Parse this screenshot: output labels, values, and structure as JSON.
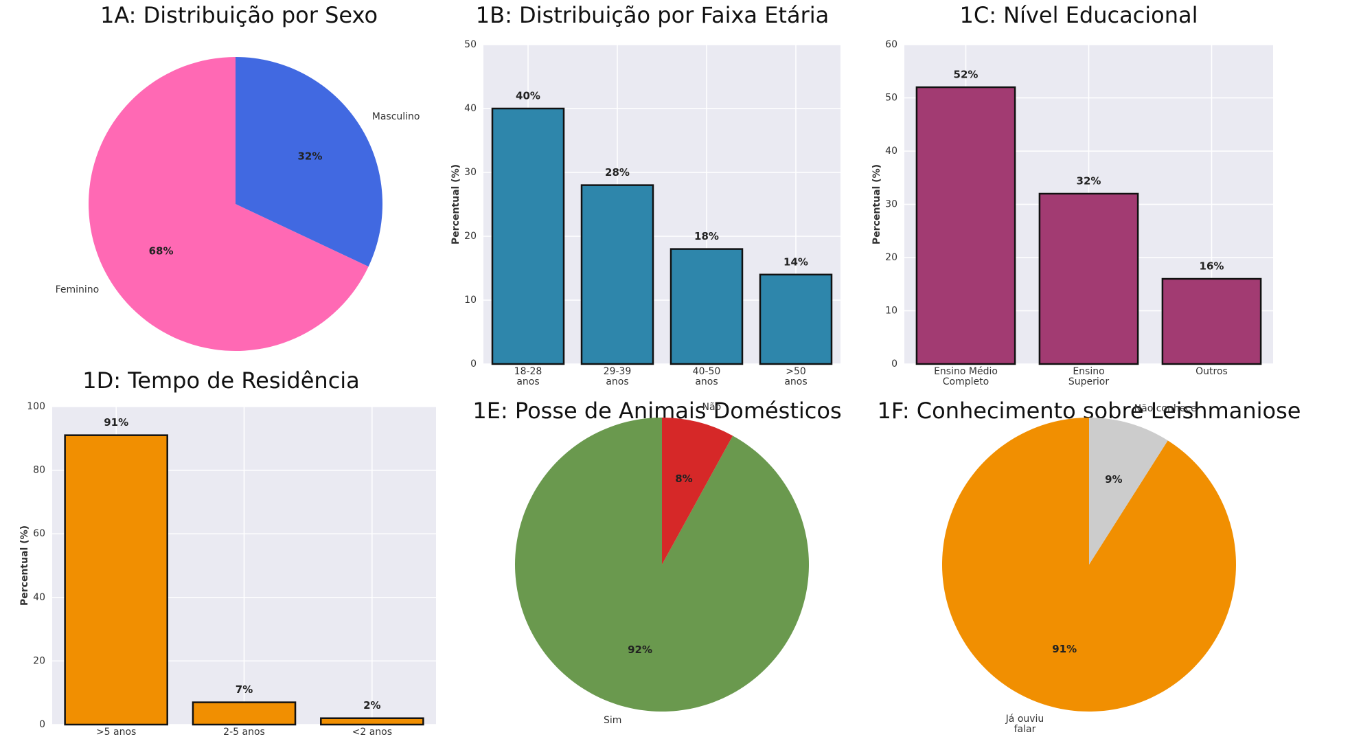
{
  "chart_data": [
    {
      "type": "pie",
      "title": "1A: Distribuição por Sexo",
      "categories": [
        "Feminino",
        "Masculino"
      ],
      "values": [
        68,
        32
      ],
      "value_labels": [
        "68%",
        "32%"
      ],
      "colors": [
        "#ff69b4",
        "#4169e1"
      ]
    },
    {
      "type": "bar",
      "title": "1B: Distribuição por Faixa Etária",
      "ylabel": "Percentual (%)",
      "categories": [
        "18-28\nanos",
        "29-39\nanos",
        "40-50\nanos",
        ">50\nanos"
      ],
      "values": [
        40,
        28,
        18,
        14
      ],
      "value_labels": [
        "40%",
        "28%",
        "18%",
        "14%"
      ],
      "color": "#2e86ab",
      "ylim": [
        0,
        50
      ],
      "yticks": [
        0,
        10,
        20,
        30,
        40,
        50
      ],
      "grid": true
    },
    {
      "type": "bar",
      "title": "1C: Nível Educacional",
      "ylabel": "Percentual (%)",
      "categories": [
        "Ensino Médio\nCompleto",
        "Ensino\nSuperior",
        "Outros"
      ],
      "values": [
        52,
        32,
        16
      ],
      "value_labels": [
        "52%",
        "32%",
        "16%"
      ],
      "color": "#a23b72",
      "ylim": [
        0,
        60
      ],
      "yticks": [
        0,
        10,
        20,
        30,
        40,
        50,
        60
      ],
      "grid": true
    },
    {
      "type": "bar",
      "title": "1D: Tempo de Residência",
      "ylabel": "Percentual (%)",
      "categories": [
        ">5 anos",
        "2-5 anos",
        "<2 anos"
      ],
      "values": [
        91,
        7,
        2
      ],
      "value_labels": [
        "91%",
        "7%",
        "2%"
      ],
      "color": "#f18f01",
      "ylim": [
        0,
        100
      ],
      "yticks": [
        0,
        20,
        40,
        60,
        80,
        100
      ],
      "grid": true
    },
    {
      "type": "pie",
      "title": "1E: Posse de Animais Domésticos",
      "categories": [
        "Sim",
        "Não"
      ],
      "values": [
        92,
        8
      ],
      "value_labels": [
        "92%",
        "8%"
      ],
      "colors": [
        "#6a994e",
        "#d62828"
      ]
    },
    {
      "type": "pie",
      "title": "1F: Conhecimento sobre Leishmaniose",
      "categories": [
        "Já ouviu\nfalar",
        "Não conhece"
      ],
      "values": [
        91,
        9
      ],
      "value_labels": [
        "91%",
        "9%"
      ],
      "colors": [
        "#f18f01",
        "#cccccc"
      ]
    }
  ]
}
